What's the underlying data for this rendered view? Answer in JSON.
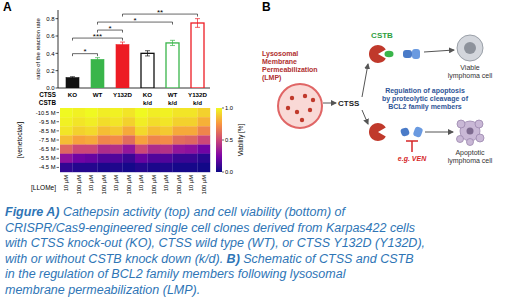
{
  "panel_labels": [
    "A",
    "B"
  ],
  "chart_data": [
    {
      "type": "bar",
      "ylabel": "ratio of the reaction rate",
      "categories_label": "CTSS",
      "categories": [
        "KO",
        "WT",
        "Y132D",
        "KO",
        "WT",
        "Y132D"
      ],
      "subcategories_label": "CSTB",
      "subcategories": [
        null,
        null,
        null,
        "k/d",
        "k/d",
        "k/d"
      ],
      "values": [
        0.12,
        0.33,
        0.5,
        0.4,
        0.52,
        0.75
      ],
      "errors": [
        0.01,
        0.02,
        0.03,
        0.03,
        0.03,
        0.05
      ],
      "colors": [
        "#111111",
        "#39b54a",
        "#ed1c24",
        "#111111",
        "#39b54a",
        "#ed1c24"
      ],
      "ylim": [
        0,
        0.9
      ],
      "yticks": [
        {
          "value": 0,
          "label": "0.0"
        },
        {
          "value": 0.2,
          "label": "0.2"
        },
        {
          "value": 0.4,
          "label": "0.4"
        },
        {
          "value": 0.6,
          "label": "0.6"
        },
        {
          "value": 0.8,
          "label": "0.8"
        }
      ],
      "significance": [
        {
          "from": 0,
          "to": 1,
          "label": "*"
        },
        {
          "from": 0,
          "to": 2,
          "label": "***"
        },
        {
          "from": 1,
          "to": 2,
          "label": "*"
        },
        {
          "from": 1,
          "to": 4,
          "label": "*"
        },
        {
          "from": 2,
          "to": 5,
          "label": "**"
        }
      ]
    },
    {
      "type": "heatmap",
      "ylabel": "[venetoclax]",
      "y_labels": [
        "-10.5 M",
        "-9.5 M",
        "-8.5 M",
        "-7.5 M",
        "-6.5 M",
        "-5.5 M",
        "-4.5 M"
      ],
      "xlabel": "[LLOMe]",
      "x_labels": [
        "10 µM",
        "100 µM",
        "10 µM",
        "100 µM",
        "10 µM",
        "100 µM",
        "10 µM",
        "100 µM",
        "10 µM",
        "100 µM",
        "10 µM",
        "100 µM"
      ],
      "cells": [
        [
          1.0,
          0.98,
          1.0,
          0.97,
          0.98,
          0.95,
          1.0,
          0.97,
          0.98,
          0.95,
          0.95,
          0.9
        ],
        [
          0.98,
          0.95,
          0.97,
          0.93,
          0.95,
          0.9,
          0.97,
          0.93,
          0.95,
          0.9,
          0.9,
          0.82
        ],
        [
          0.95,
          0.9,
          0.92,
          0.85,
          0.88,
          0.8,
          0.92,
          0.85,
          0.88,
          0.8,
          0.8,
          0.7
        ],
        [
          0.85,
          0.78,
          0.8,
          0.7,
          0.72,
          0.62,
          0.78,
          0.7,
          0.72,
          0.62,
          0.6,
          0.5
        ],
        [
          0.6,
          0.5,
          0.5,
          0.4,
          0.42,
          0.32,
          0.5,
          0.4,
          0.42,
          0.32,
          0.3,
          0.22
        ],
        [
          0.3,
          0.22,
          0.2,
          0.15,
          0.15,
          0.1,
          0.2,
          0.15,
          0.15,
          0.1,
          0.1,
          0.06
        ],
        [
          0.08,
          0.05,
          0.05,
          0.03,
          0.04,
          0.02,
          0.05,
          0.03,
          0.04,
          0.02,
          0.02,
          0.01
        ]
      ],
      "colorbar_label": "Viability [%]",
      "colorbar_range": [
        0,
        1
      ],
      "colorbar_ticks": [
        {
          "value": 0,
          "label": "0.0"
        },
        {
          "value": 0.5,
          "label": "0.5"
        },
        {
          "value": 1,
          "label": "1.0"
        }
      ]
    }
  ],
  "diagram": {
    "lmp": [
      "Lysosomal",
      "Membrane",
      "Permeabilization",
      "(LMP)"
    ],
    "ctss": "CTSS",
    "cstb": "CSTB",
    "regulation": [
      "Regulation of apoptosis",
      "by proteolytic cleavage of",
      "BCL2 family members"
    ],
    "viable": [
      "Viable",
      "lymphoma cell"
    ],
    "apoptotic": [
      "Apoptotic",
      "lymphoma cell"
    ],
    "inhibitor": "e.g. VEN"
  },
  "caption": [
    [
      {
        "text": "Figure A)",
        "bold": true
      },
      {
        "text": " Cathepsin activity (top) and cell viability (bottom) of"
      }
    ],
    [
      {
        "text": "CRISPR/Cas9-engineered single cell clones derived from Karpas422 cells"
      }
    ],
    [
      {
        "text": "with CTSS knock-out (KO), CTSS wild type (WT), or CTSS Y132D (Y132D),"
      }
    ],
    [
      {
        "text": "with or without CSTB knock down (k/d). "
      },
      {
        "text": "B)",
        "bold": true
      },
      {
        "text": " Schematic of CTSS and CSTB"
      }
    ],
    [
      {
        "text": "in the regulation of BCL2 family members following lysosomal"
      }
    ],
    [
      {
        "text": "membrane permeabilization (LMP)."
      }
    ]
  ]
}
